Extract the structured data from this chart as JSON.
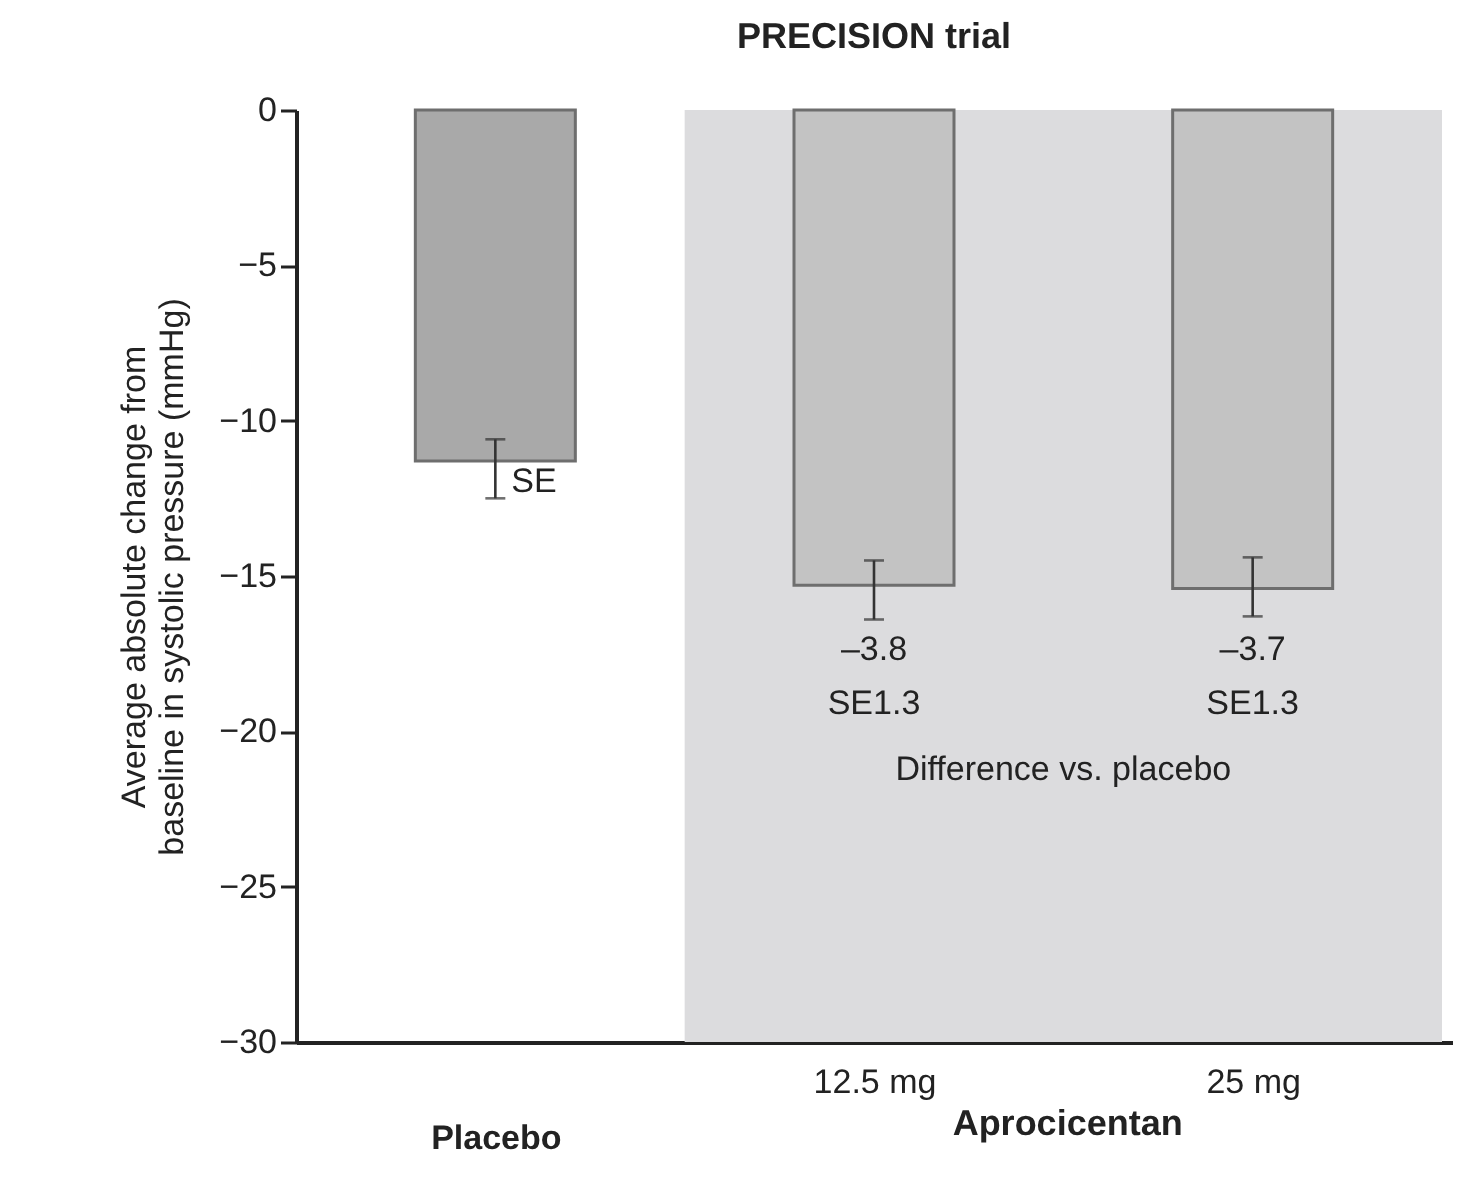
{
  "chart_data": {
    "type": "bar",
    "title": "PRECISION trial",
    "ylabel": "Average absolute change from\nbaseline in systolic pressure (mmHg)",
    "xlabel": "Aprocicentan",
    "categories": [
      "Placebo",
      "12.5 mg",
      "25 mg"
    ],
    "values": [
      -11.3,
      -15.3,
      -15.4
    ],
    "colors": [
      "#a9a9a9",
      "#c3c3c3",
      "#c3c3c3"
    ],
    "errors": [
      [
        -12.5,
        -10.6
      ],
      [
        -16.4,
        -14.5
      ],
      [
        -16.3,
        -14.4
      ]
    ],
    "bands": [
      {
        "axis": "x",
        "from": "12.5 mg",
        "to": "25 mg",
        "color": "#dcdcde"
      }
    ],
    "ylim": [
      -30,
      0
    ],
    "yticks": [
      0,
      -5,
      -10,
      -15,
      -20,
      -25,
      -30
    ],
    "grid": false,
    "annotations": [
      "SE",
      "–3.8",
      "SE1.3",
      "–3.7",
      "SE1.3",
      "Difference vs. placebo"
    ]
  }
}
